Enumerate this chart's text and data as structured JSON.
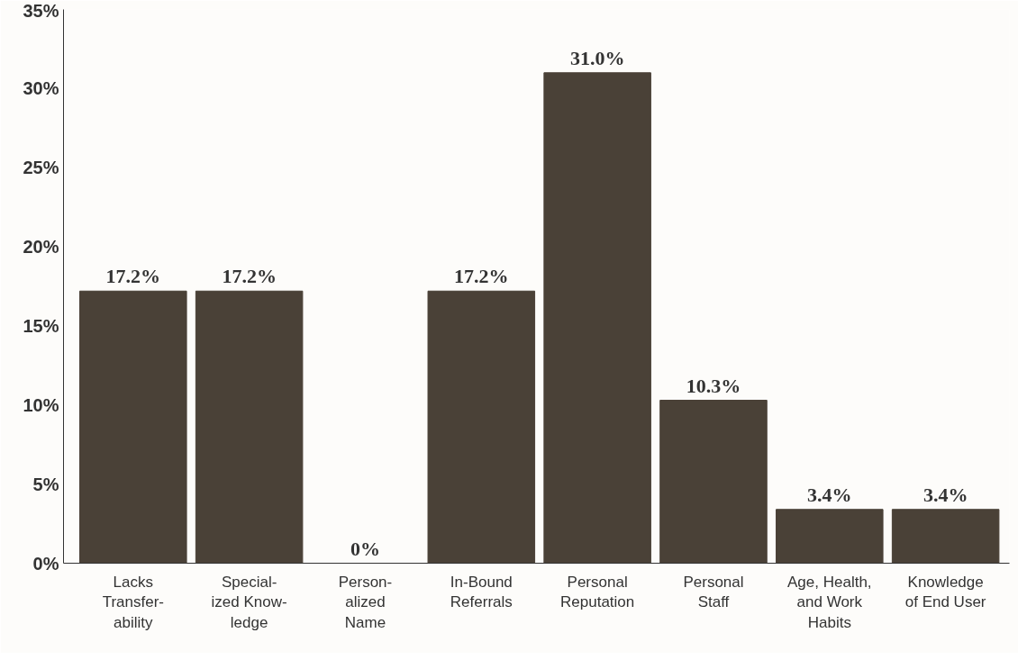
{
  "chart_data": {
    "type": "bar",
    "categories": [
      "Lacks\nTransfer-\nability",
      "Special-\nized Know-\nledge",
      "Person-\nalized\nName",
      "In-Bound\nReferrals",
      "Personal\nReputation",
      "Personal\nStaff",
      "Age, Health,\nand Work\nHabits",
      "Knowledge\nof End User"
    ],
    "values": [
      17.2,
      17.2,
      0,
      17.2,
      31.0,
      10.3,
      3.4,
      3.4
    ],
    "value_labels": [
      "17.2%",
      "17.2%",
      "0%",
      "17.2%",
      "31.0%",
      "10.3%",
      "3.4%",
      "3.4%"
    ],
    "color": "#4a4137",
    "ylim": [
      0,
      35
    ],
    "yticks": [
      {
        "value": 0,
        "label": "0%"
      },
      {
        "value": 5,
        "label": "5%"
      },
      {
        "value": 10,
        "label": "10%"
      },
      {
        "value": 15,
        "label": "15%"
      },
      {
        "value": 20,
        "label": "20%"
      },
      {
        "value": 25,
        "label": "25%"
      },
      {
        "value": 30,
        "label": "30%"
      },
      {
        "value": 35,
        "label": "35%"
      }
    ],
    "grid": false
  }
}
